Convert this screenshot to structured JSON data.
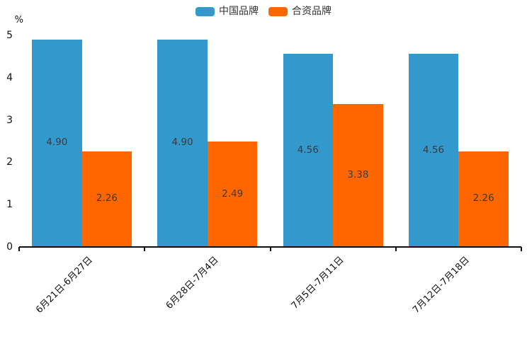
{
  "chart_data": {
    "type": "bar",
    "title": "",
    "xlabel": "",
    "ylabel": "%",
    "categories": [
      "6月21日-6月27日",
      "6月28日-7月4日",
      "7月5日-7月11日",
      "7月12日-7月18日"
    ],
    "series": [
      {
        "name": "中国品牌",
        "color": "#3398CB",
        "values": [
          4.9,
          4.9,
          4.56,
          4.56
        ]
      },
      {
        "name": "合资品牌",
        "color": "#FF6600",
        "values": [
          2.26,
          2.49,
          3.38,
          2.26
        ]
      }
    ],
    "ylim": [
      0,
      5
    ],
    "yticks": [
      0,
      1,
      2,
      3,
      4,
      5
    ],
    "grid": false,
    "legend_position": "top-center",
    "bar_label_decimals": 2,
    "colors": {
      "axis": "#111111",
      "bar_label_text": "#3b3b3b",
      "legend_text": "#333333"
    }
  }
}
